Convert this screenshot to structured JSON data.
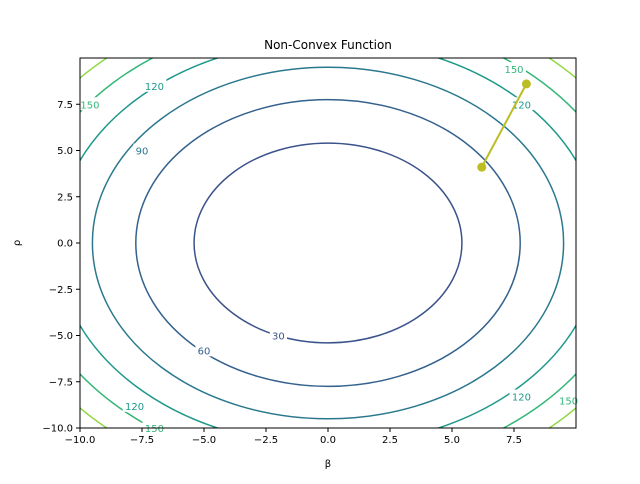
{
  "chart_data": {
    "type": "contour",
    "title": "Non-Convex Function",
    "xlabel": "β",
    "ylabel": "ρ",
    "xlim": [
      -10,
      10
    ],
    "ylim": [
      -10,
      10
    ],
    "xticks": [
      "−10.0",
      "−7.5",
      "−5.0",
      "−2.5",
      "0.0",
      "2.5",
      "5.0",
      "7.5"
    ],
    "yticks": [
      "−10.0",
      "−7.5",
      "−5.0",
      "−2.5",
      "0.0",
      "2.5",
      "5.0",
      "7.5"
    ],
    "grid": false,
    "contour_levels": [
      {
        "level": 30,
        "label": "30",
        "color": "#3b528b",
        "rx": 5.4,
        "ry": 5.4
      },
      {
        "level": 60,
        "label": "60",
        "color": "#34618d",
        "rx": 7.75,
        "ry": 7.75
      },
      {
        "level": 90,
        "label": "90",
        "color": "#2a788e",
        "rx": 9.5,
        "ry": 9.5
      },
      {
        "level": 120,
        "label": "120",
        "color": "#1f988b",
        "rx": 10.95,
        "ry": 10.95
      },
      {
        "level": 150,
        "label": "150",
        "color": "#35b779",
        "rx": 12.25,
        "ry": 12.25
      },
      {
        "level": 180,
        "label": "",
        "color": "#90d743",
        "rx": 13.4,
        "ry": 13.4
      }
    ],
    "contour_labels": [
      {
        "text": "30",
        "x": -2.0,
        "y": -5.0,
        "color": "#3b528b"
      },
      {
        "text": "60",
        "x": -5.0,
        "y": -5.8,
        "color": "#34618d"
      },
      {
        "text": "90",
        "x": -7.5,
        "y": 5.0,
        "color": "#2a788e"
      },
      {
        "text": "120",
        "x": -7.0,
        "y": 8.5,
        "color": "#1f988b"
      },
      {
        "text": "120",
        "x": -7.8,
        "y": -8.8,
        "color": "#1f988b"
      },
      {
        "text": "120",
        "x": 7.8,
        "y": 7.5,
        "color": "#1f988b"
      },
      {
        "text": "120",
        "x": 7.8,
        "y": -8.3,
        "color": "#1f988b"
      },
      {
        "text": "150",
        "x": -9.6,
        "y": 7.5,
        "color": "#35b779"
      },
      {
        "text": "150",
        "x": 7.5,
        "y": 9.4,
        "color": "#35b779"
      },
      {
        "text": "150",
        "x": -7.0,
        "y": -10.0,
        "color": "#35b779"
      },
      {
        "text": "150",
        "x": 9.7,
        "y": -8.5,
        "color": "#35b779"
      }
    ],
    "path_series": {
      "color": "#bcbd22",
      "points": [
        [
          8.0,
          8.6
        ],
        [
          6.2,
          4.1
        ]
      ]
    }
  }
}
